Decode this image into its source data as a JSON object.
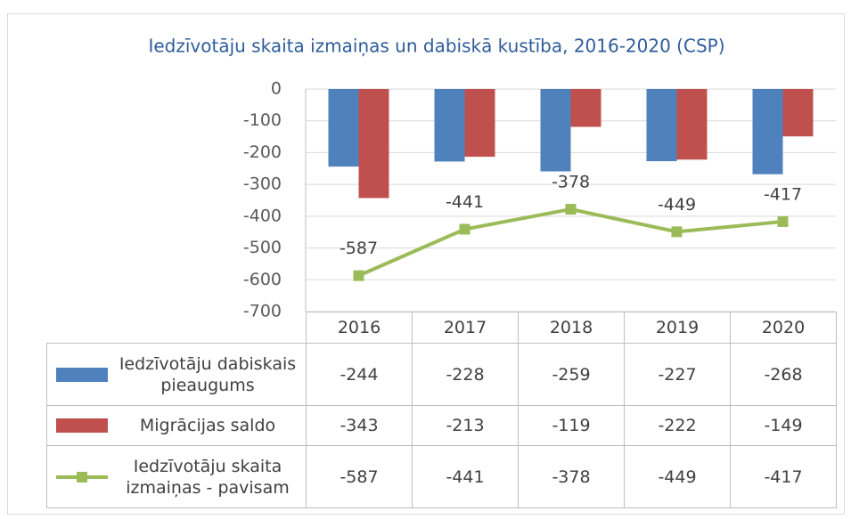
{
  "chart_data": {
    "type": "bar",
    "title": "Iedzīvotāju skaita izmaiņas un dabiskā kustība, 2016-2020 (CSP)",
    "categories": [
      "2016",
      "2017",
      "2018",
      "2019",
      "2020"
    ],
    "series": [
      {
        "name": "Iedzīvotāju dabiskais pieaugums",
        "color": "#4f81bd",
        "values": [
          -244,
          -228,
          -259,
          -227,
          -268
        ]
      },
      {
        "name": "Migrācijas saldo",
        "color": "#c0504d",
        "values": [
          -343,
          -213,
          -119,
          -222,
          -149
        ]
      },
      {
        "name": "Iedzīvotāju skaita izmaiņas - pavisam",
        "color": "#9bbb59",
        "type": "line",
        "data_labels": true,
        "values": [
          -587,
          -441,
          -378,
          -449,
          -417
        ]
      }
    ],
    "ylim": [
      -700,
      0
    ],
    "yticks": [
      0,
      -100,
      -200,
      -300,
      -400,
      -500,
      -600,
      -700
    ],
    "grid": true,
    "data_table": true
  }
}
